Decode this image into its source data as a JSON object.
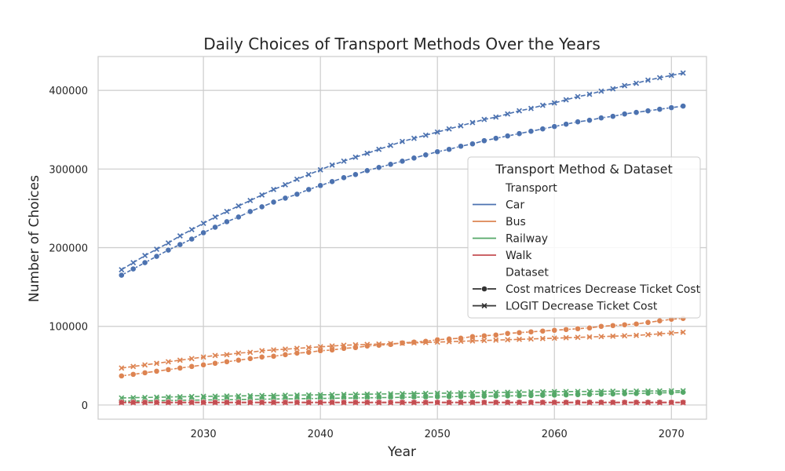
{
  "chart_data": {
    "type": "line",
    "title": "Daily Choices of Transport Methods Over the Years",
    "xlabel": "Year",
    "ylabel": "Number of Choices",
    "xlim": [
      2021,
      2073
    ],
    "ylim": [
      -18000,
      443000
    ],
    "x_ticks": [
      {
        "value": 2030,
        "label": "2030"
      },
      {
        "value": 2040,
        "label": "2040"
      },
      {
        "value": 2050,
        "label": "2050"
      },
      {
        "value": 2060,
        "label": "2060"
      },
      {
        "value": 2070,
        "label": "2070"
      }
    ],
    "y_ticks": [
      {
        "value": 0,
        "label": "0"
      },
      {
        "value": 100000,
        "label": "100000"
      },
      {
        "value": 200000,
        "label": "200000"
      },
      {
        "value": 300000,
        "label": "300000"
      },
      {
        "value": 400000,
        "label": "400000"
      }
    ],
    "grid": true,
    "x_start": 2023,
    "x_end": 2071,
    "colors": {
      "Car": "#4c72b0",
      "Bus": "#dd8452",
      "Railway": "#55a868",
      "Walk": "#c44e52"
    },
    "series": [
      {
        "transport": "Car",
        "dataset": "Cost matrices Decrease Ticket Cost",
        "marker": "circle",
        "values": [
          165000,
          173000,
          181000,
          189000,
          197000,
          204000,
          211000,
          219000,
          226000,
          233000,
          239000,
          246000,
          252000,
          258000,
          263000,
          268000,
          274000,
          279000,
          284000,
          289000,
          293000,
          298000,
          302000,
          306000,
          310000,
          314000,
          318000,
          322000,
          325000,
          329000,
          332000,
          336000,
          339000,
          342000,
          345000,
          348000,
          351000,
          354000,
          357000,
          360000,
          362000,
          365000,
          367000,
          370000,
          372000,
          374000,
          376000,
          378000,
          380000
        ]
      },
      {
        "transport": "Car",
        "dataset": "LOGIT Decrease Ticket Cost",
        "marker": "x",
        "values": [
          172000,
          181000,
          190000,
          198000,
          206000,
          215000,
          223000,
          231000,
          239000,
          246000,
          253000,
          260000,
          267000,
          274000,
          280000,
          287000,
          293000,
          299000,
          305000,
          310000,
          315000,
          320000,
          325000,
          330000,
          335000,
          339000,
          343000,
          347000,
          351000,
          355000,
          359000,
          363000,
          366000,
          370000,
          374000,
          377000,
          381000,
          384000,
          388000,
          392000,
          395000,
          399000,
          402000,
          406000,
          409000,
          413000,
          416000,
          419000,
          422000
        ]
      },
      {
        "transport": "Bus",
        "dataset": "Cost matrices Decrease Ticket Cost",
        "marker": "circle",
        "values": [
          37000,
          39000,
          41000,
          43000,
          45000,
          47000,
          49000,
          51000,
          53000,
          55000,
          57000,
          59000,
          61000,
          62000,
          64000,
          66000,
          67000,
          69000,
          70000,
          72000,
          73000,
          75000,
          76000,
          77000,
          79000,
          80000,
          81000,
          83000,
          84000,
          85000,
          87000,
          88000,
          89000,
          91000,
          92000,
          93000,
          94000,
          95000,
          96000,
          97000,
          98000,
          100000,
          101000,
          102000,
          103000,
          105000,
          107000,
          109000,
          110000
        ]
      },
      {
        "transport": "Bus",
        "dataset": "LOGIT Decrease Ticket Cost",
        "marker": "x",
        "values": [
          47000,
          49000,
          51000,
          53000,
          55000,
          57000,
          59000,
          61000,
          63000,
          64000,
          66000,
          67000,
          69000,
          70000,
          71000,
          72000,
          73000,
          74000,
          75000,
          76000,
          76500,
          77000,
          77500,
          78000,
          78500,
          79000,
          79500,
          80000,
          80500,
          81000,
          81500,
          82000,
          82500,
          83000,
          83500,
          84000,
          84500,
          85000,
          85500,
          86000,
          86500,
          87000,
          87500,
          88000,
          88500,
          89500,
          90500,
          91500,
          92500
        ]
      },
      {
        "transport": "Railway",
        "dataset": "Cost matrices Decrease Ticket Cost",
        "marker": "circle",
        "values": [
          5000,
          5200,
          5400,
          5600,
          5800,
          6000,
          6200,
          6400,
          6600,
          6800,
          7000,
          7200,
          7400,
          7600,
          7800,
          8000,
          8200,
          8400,
          8600,
          8800,
          9000,
          9200,
          9400,
          9600,
          9800,
          10000,
          10200,
          10400,
          10600,
          10800,
          11000,
          11200,
          11400,
          11600,
          11800,
          12000,
          12300,
          12600,
          12900,
          13200,
          13500,
          13800,
          14100,
          14400,
          14700,
          15000,
          15400,
          15800,
          16200
        ]
      },
      {
        "transport": "Railway",
        "dataset": "LOGIT Decrease Ticket Cost",
        "marker": "x",
        "values": [
          9000,
          9300,
          9600,
          9900,
          10200,
          10500,
          10800,
          11000,
          11200,
          11400,
          11600,
          11800,
          12000,
          12200,
          12400,
          12600,
          12800,
          13000,
          13200,
          13400,
          13600,
          13800,
          14000,
          14200,
          14400,
          14600,
          14800,
          15000,
          15200,
          15400,
          15600,
          15800,
          16000,
          16200,
          16400,
          16600,
          16800,
          17000,
          17100,
          17200,
          17300,
          17400,
          17500,
          17600,
          17700,
          17800,
          17900,
          18000,
          18100
        ]
      },
      {
        "transport": "Walk",
        "dataset": "Cost matrices Decrease Ticket Cost",
        "marker": "circle",
        "values": [
          3500,
          3500,
          3500,
          3500,
          3500,
          3500,
          3500,
          3500,
          3500,
          3500,
          3500,
          3500,
          3500,
          3500,
          3500,
          3500,
          3500,
          3500,
          3500,
          3500,
          3500,
          3500,
          3500,
          3500,
          3500,
          3500,
          3500,
          3500,
          3500,
          3500,
          3500,
          3500,
          3500,
          3500,
          3500,
          3500,
          3500,
          3500,
          3500,
          3500,
          3500,
          3500,
          3500,
          3500,
          3500,
          3500,
          3500,
          3500,
          3500
        ]
      },
      {
        "transport": "Walk",
        "dataset": "LOGIT Decrease Ticket Cost",
        "marker": "x",
        "values": [
          3000,
          3000,
          3000,
          3000,
          3000,
          3000,
          3000,
          3000,
          3000,
          3000,
          3000,
          3000,
          3000,
          3000,
          3000,
          3000,
          3000,
          3000,
          3000,
          3000,
          3000,
          3000,
          3000,
          3000,
          3000,
          3000,
          3000,
          3000,
          3000,
          3000,
          3000,
          3000,
          3000,
          3000,
          3000,
          3000,
          3000,
          3000,
          3000,
          3000,
          3000,
          3000,
          3000,
          3000,
          3000,
          3000,
          3000,
          3000,
          3000
        ]
      }
    ],
    "legend": {
      "title": "Transport Method & Dataset",
      "placement": "center-right",
      "transport_header": "Transport",
      "transport_items": [
        "Car",
        "Bus",
        "Railway",
        "Walk"
      ],
      "dataset_header": "Dataset",
      "dataset_items": [
        {
          "label": "Cost matrices Decrease Ticket Cost",
          "marker": "circle"
        },
        {
          "label": "LOGIT Decrease Ticket Cost",
          "marker": "x"
        }
      ]
    }
  }
}
